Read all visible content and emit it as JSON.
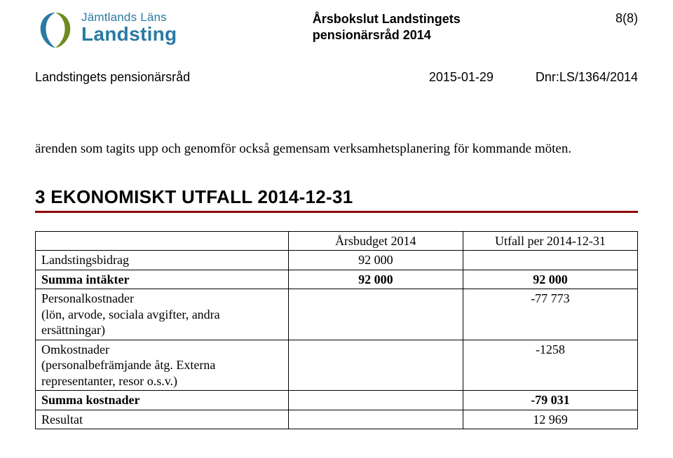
{
  "header": {
    "org_line1": "Jämtlands Läns",
    "org_line2": "Landsting",
    "doc_title_line1": "Årsbokslut Landstingets",
    "doc_title_line2": "pensionärsråd 2014",
    "page_indicator": "8(8)"
  },
  "subheader": {
    "left": "Landstingets pensionärsråd",
    "date": "2015-01-29",
    "dnr": "Dnr:LS/1364/2014"
  },
  "body": {
    "paragraph": "ärenden som tagits upp och genomför också gemensam verksamhetsplanering för kommande möten."
  },
  "section": {
    "heading": "3  EKONOMISKT UTFALL 2014-12-31"
  },
  "table": {
    "head": {
      "col1": "",
      "col2": "Årsbudget 2014",
      "col3": "Utfall per 2014-12-31"
    },
    "rows": [
      {
        "label": "Landstingsbidrag",
        "budget": "92 000",
        "utfall": "",
        "bold": false
      },
      {
        "label": "Summa intäkter",
        "budget": "92 000",
        "utfall": "92 000",
        "bold": true
      },
      {
        "label": "Personalkostnader\n(lön, arvode, sociala avgifter, andra ersättningar)",
        "budget": "",
        "utfall": "-77 773",
        "bold": false
      },
      {
        "label": "Omkostnader\n(personalbefrämjande åtg. Externa representanter, resor o.s.v.)",
        "budget": "",
        "utfall": "-1258",
        "bold": false
      },
      {
        "label": "Summa kostnader",
        "budget": "",
        "utfall": "-79 031",
        "bold": true
      },
      {
        "label": "Resultat",
        "budget": "",
        "utfall": "12 969",
        "bold": false
      }
    ]
  },
  "colors": {
    "brand_blue": "#2a7aa3",
    "brand_green": "#6d8b1e",
    "heading_underline": "#8b0000",
    "text": "#000000",
    "background": "#ffffff",
    "border": "#000000"
  }
}
